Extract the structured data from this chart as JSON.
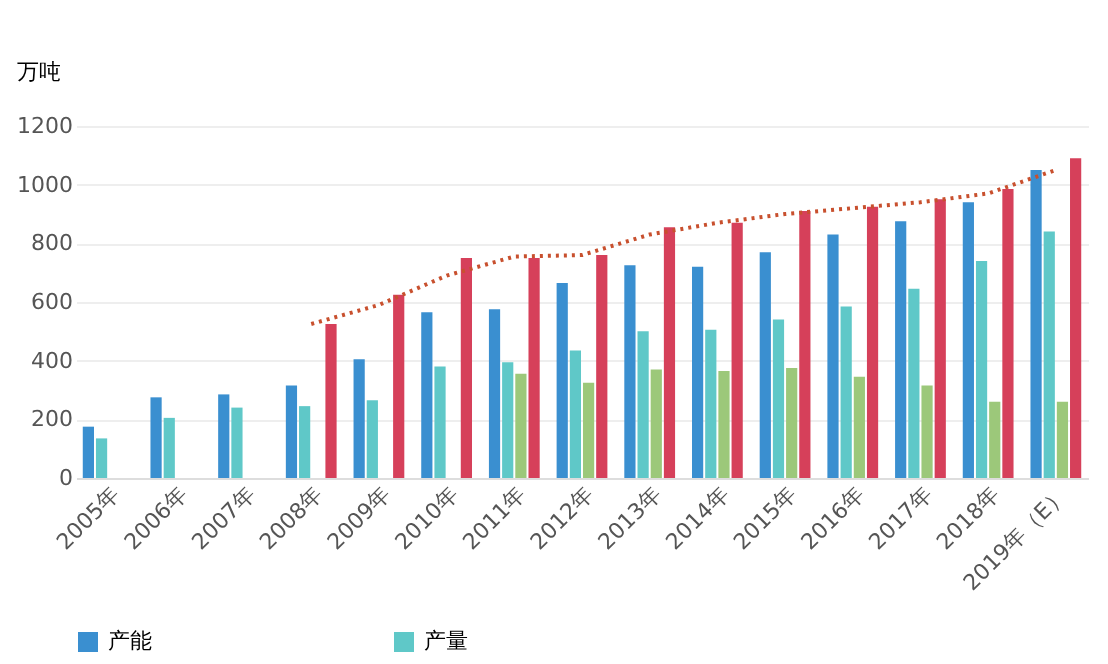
{
  "chart_data": {
    "type": "bar",
    "ylabel": "万吨",
    "categories": [
      "2005年",
      "2006年",
      "2007年",
      "2008年",
      "2009年",
      "2010年",
      "2011年",
      "2012年",
      "2013年",
      "2014年",
      "2015年",
      "2016年",
      "2017年",
      "2018年",
      "2019年（E）"
    ],
    "series": [
      {
        "name": "产能",
        "color": "#3a8fd0",
        "values": [
          175,
          275,
          285,
          315,
          405,
          565,
          575,
          665,
          725,
          720,
          770,
          830,
          875,
          940,
          1050
        ]
      },
      {
        "name": "产量",
        "color": "#5fc8c8",
        "values": [
          135,
          205,
          240,
          245,
          265,
          380,
          395,
          435,
          500,
          505,
          540,
          585,
          645,
          740,
          840
        ]
      },
      {
        "color": "#9cc87a",
        "values": [
          null,
          null,
          null,
          null,
          null,
          null,
          355,
          325,
          370,
          365,
          375,
          345,
          315,
          260,
          260
        ]
      },
      {
        "color": "#d6405a",
        "values": [
          null,
          null,
          null,
          525,
          625,
          750,
          750,
          760,
          855,
          870,
          910,
          925,
          950,
          985,
          1090
        ]
      },
      {
        "type": "line",
        "color": "#c8502e",
        "line_style": "dotted",
        "values": [
          null,
          null,
          null,
          525,
          590,
          690,
          755,
          760,
          830,
          870,
          900,
          920,
          940,
          970,
          1050
        ]
      }
    ],
    "ylim": [
      0,
      1200
    ],
    "yticks": [
      0,
      200,
      400,
      600,
      800,
      1000,
      1200
    ],
    "grid": "y",
    "legend": "bottom"
  }
}
